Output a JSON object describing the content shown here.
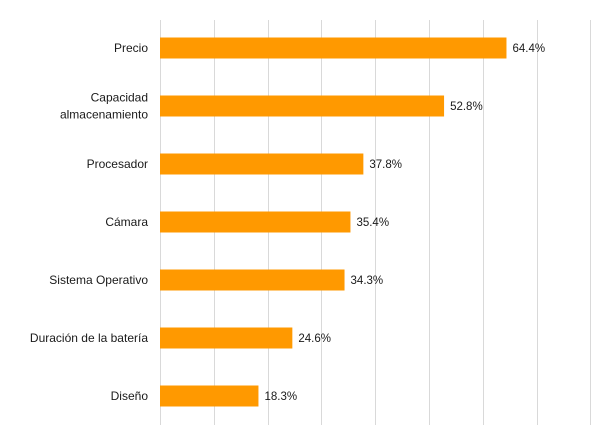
{
  "chart_data": {
    "type": "bar",
    "orientation": "horizontal",
    "title": "",
    "xlabel": "",
    "ylabel": "",
    "categories": [
      [
        "Precio"
      ],
      [
        "Capacidad",
        "almacenamiento"
      ],
      [
        "Procesador"
      ],
      [
        "Cámara"
      ],
      [
        "Sistema Operativo"
      ],
      [
        "Duración de la batería"
      ],
      [
        "Diseño"
      ]
    ],
    "values": [
      64.4,
      52.8,
      37.8,
      35.4,
      34.3,
      24.6,
      18.3
    ],
    "value_labels": [
      "64.4%",
      "52.8%",
      "37.8%",
      "35.4%",
      "34.3%",
      "24.6%",
      "18.3%"
    ],
    "xlim": [
      0,
      80
    ],
    "grid": true,
    "show_x_tick_labels": false,
    "legend": "none",
    "colors": {
      "bar": "#FF9900",
      "grid": "#D9D9D9",
      "text": "#1A1A1A"
    }
  }
}
